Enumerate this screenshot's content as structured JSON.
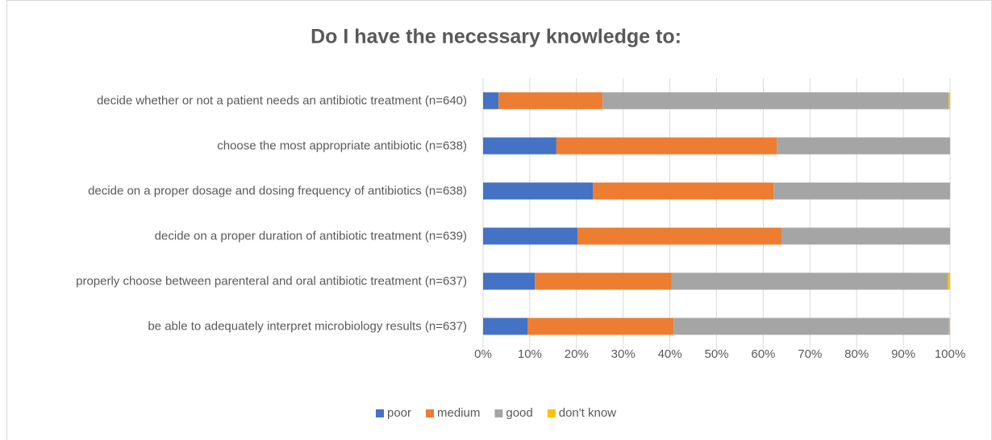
{
  "chart_data": {
    "type": "stacked_bar_horizontal",
    "title": "Do I have the necessary knowledge to:",
    "categories": [
      "decide whether or not a patient needs an antibiotic treatment (n=640)",
      "choose the most appropriate antibiotic (n=638)",
      "decide on a proper dosage and dosing frequency of antibiotics (n=638)",
      "decide on a proper duration of antibiotic treatment (n=639)",
      "properly choose between parenteral and oral antibiotic treatment (n=637)",
      "be able to adequately interpret microbiology results (n=637)"
    ],
    "series": [
      {
        "name": "poor",
        "color": "#4472c4",
        "values": [
          3.3,
          15.7,
          23.5,
          20.2,
          11.1,
          9.5
        ]
      },
      {
        "name": "medium",
        "color": "#ed7d31",
        "values": [
          22.3,
          47.2,
          38.7,
          43.7,
          29.3,
          31.3
        ]
      },
      {
        "name": "good",
        "color": "#a5a5a5",
        "values": [
          74.1,
          37.1,
          37.8,
          36.1,
          59.1,
          59.0
        ]
      },
      {
        "name": "don't know",
        "color": "#ffc000",
        "values": [
          0.3,
          0,
          0,
          0,
          0.5,
          0.2
        ]
      }
    ],
    "xlim": [
      0,
      100
    ],
    "xticks": [
      {
        "value": 0,
        "label": "0%"
      },
      {
        "value": 10,
        "label": "10%"
      },
      {
        "value": 20,
        "label": "20%"
      },
      {
        "value": 30,
        "label": "30%"
      },
      {
        "value": 40,
        "label": "40%"
      },
      {
        "value": 50,
        "label": "50%"
      },
      {
        "value": 60,
        "label": "60%"
      },
      {
        "value": 70,
        "label": "70%"
      },
      {
        "value": 80,
        "label": "80%"
      },
      {
        "value": 90,
        "label": "90%"
      },
      {
        "value": 100,
        "label": "100%"
      }
    ],
    "grid": true,
    "legend": "bottom"
  }
}
